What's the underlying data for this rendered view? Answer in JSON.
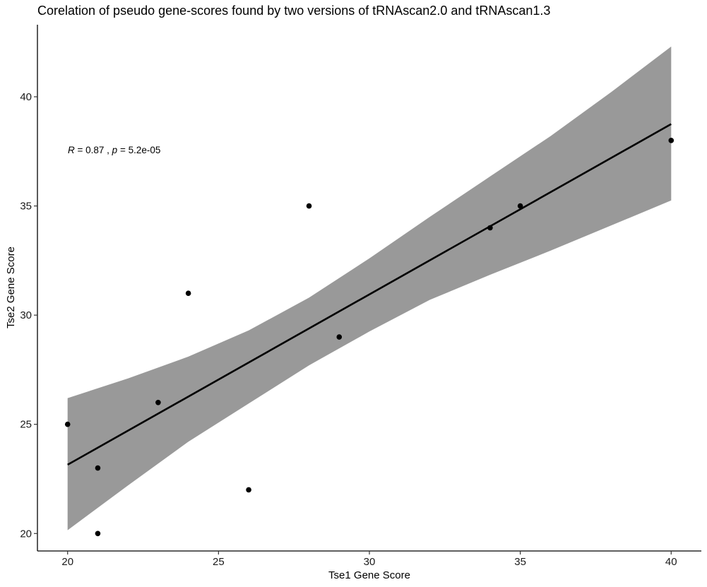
{
  "chart_data": {
    "type": "scatter",
    "title": "Corelation of pseudo gene-scores found by two versions of tRNAscan2.0 and tRNAscan1.3",
    "xlabel": "Tse1 Gene Score",
    "ylabel": "Tse2 Gene Score",
    "xlim": [
      19,
      41
    ],
    "ylim": [
      19.2,
      43.3
    ],
    "xticks": [
      20,
      25,
      30,
      35,
      40
    ],
    "yticks": [
      20,
      25,
      30,
      35,
      40
    ],
    "grid": false,
    "points": [
      {
        "x": 20,
        "y": 25
      },
      {
        "x": 21,
        "y": 23
      },
      {
        "x": 21,
        "y": 20
      },
      {
        "x": 23,
        "y": 26
      },
      {
        "x": 24,
        "y": 31
      },
      {
        "x": 26,
        "y": 22
      },
      {
        "x": 28,
        "y": 35
      },
      {
        "x": 29,
        "y": 29
      },
      {
        "x": 34,
        "y": 34
      },
      {
        "x": 35,
        "y": 35
      },
      {
        "x": 40,
        "y": 38
      }
    ],
    "regression": {
      "line": {
        "x": [
          20,
          40
        ],
        "y": [
          23.15,
          38.75
        ]
      },
      "confidence_band": {
        "x": [
          20,
          22,
          24,
          26,
          28,
          30,
          32,
          34,
          36,
          38,
          40
        ],
        "lower": [
          20.15,
          22.2,
          24.2,
          25.95,
          27.7,
          29.25,
          30.7,
          31.85,
          32.95,
          34.1,
          35.25
        ],
        "upper": [
          26.2,
          27.1,
          28.1,
          29.3,
          30.8,
          32.6,
          34.5,
          36.35,
          38.2,
          40.2,
          42.3
        ]
      },
      "color": "#000000",
      "band_color": "#999999"
    },
    "annotation": {
      "r_symbol": "R",
      "r_text": " = 0.87 , ",
      "p_symbol": "p",
      "p_text": " = 5.2e-05"
    },
    "point_color": "#000000"
  }
}
